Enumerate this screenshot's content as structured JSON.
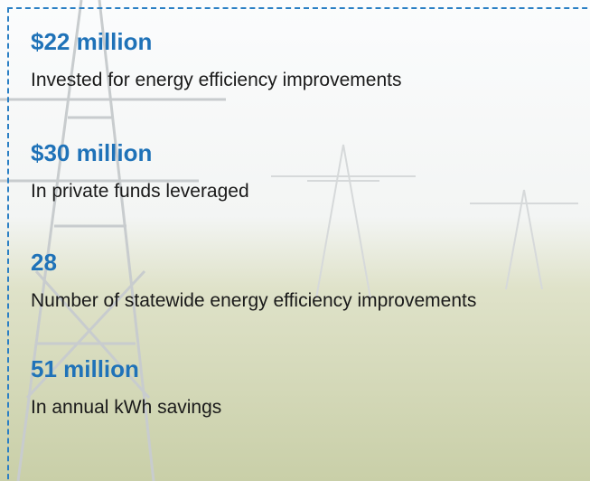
{
  "items": [
    {
      "stat": "$22 million",
      "description": "Invested for energy efficiency improvements"
    },
    {
      "stat": "$30 million",
      "description": "In private funds leveraged"
    },
    {
      "stat": "28",
      "description": "Number of statewide energy efficiency improvements"
    },
    {
      "stat": "51 million",
      "description": "In annual kWh savings"
    }
  ]
}
